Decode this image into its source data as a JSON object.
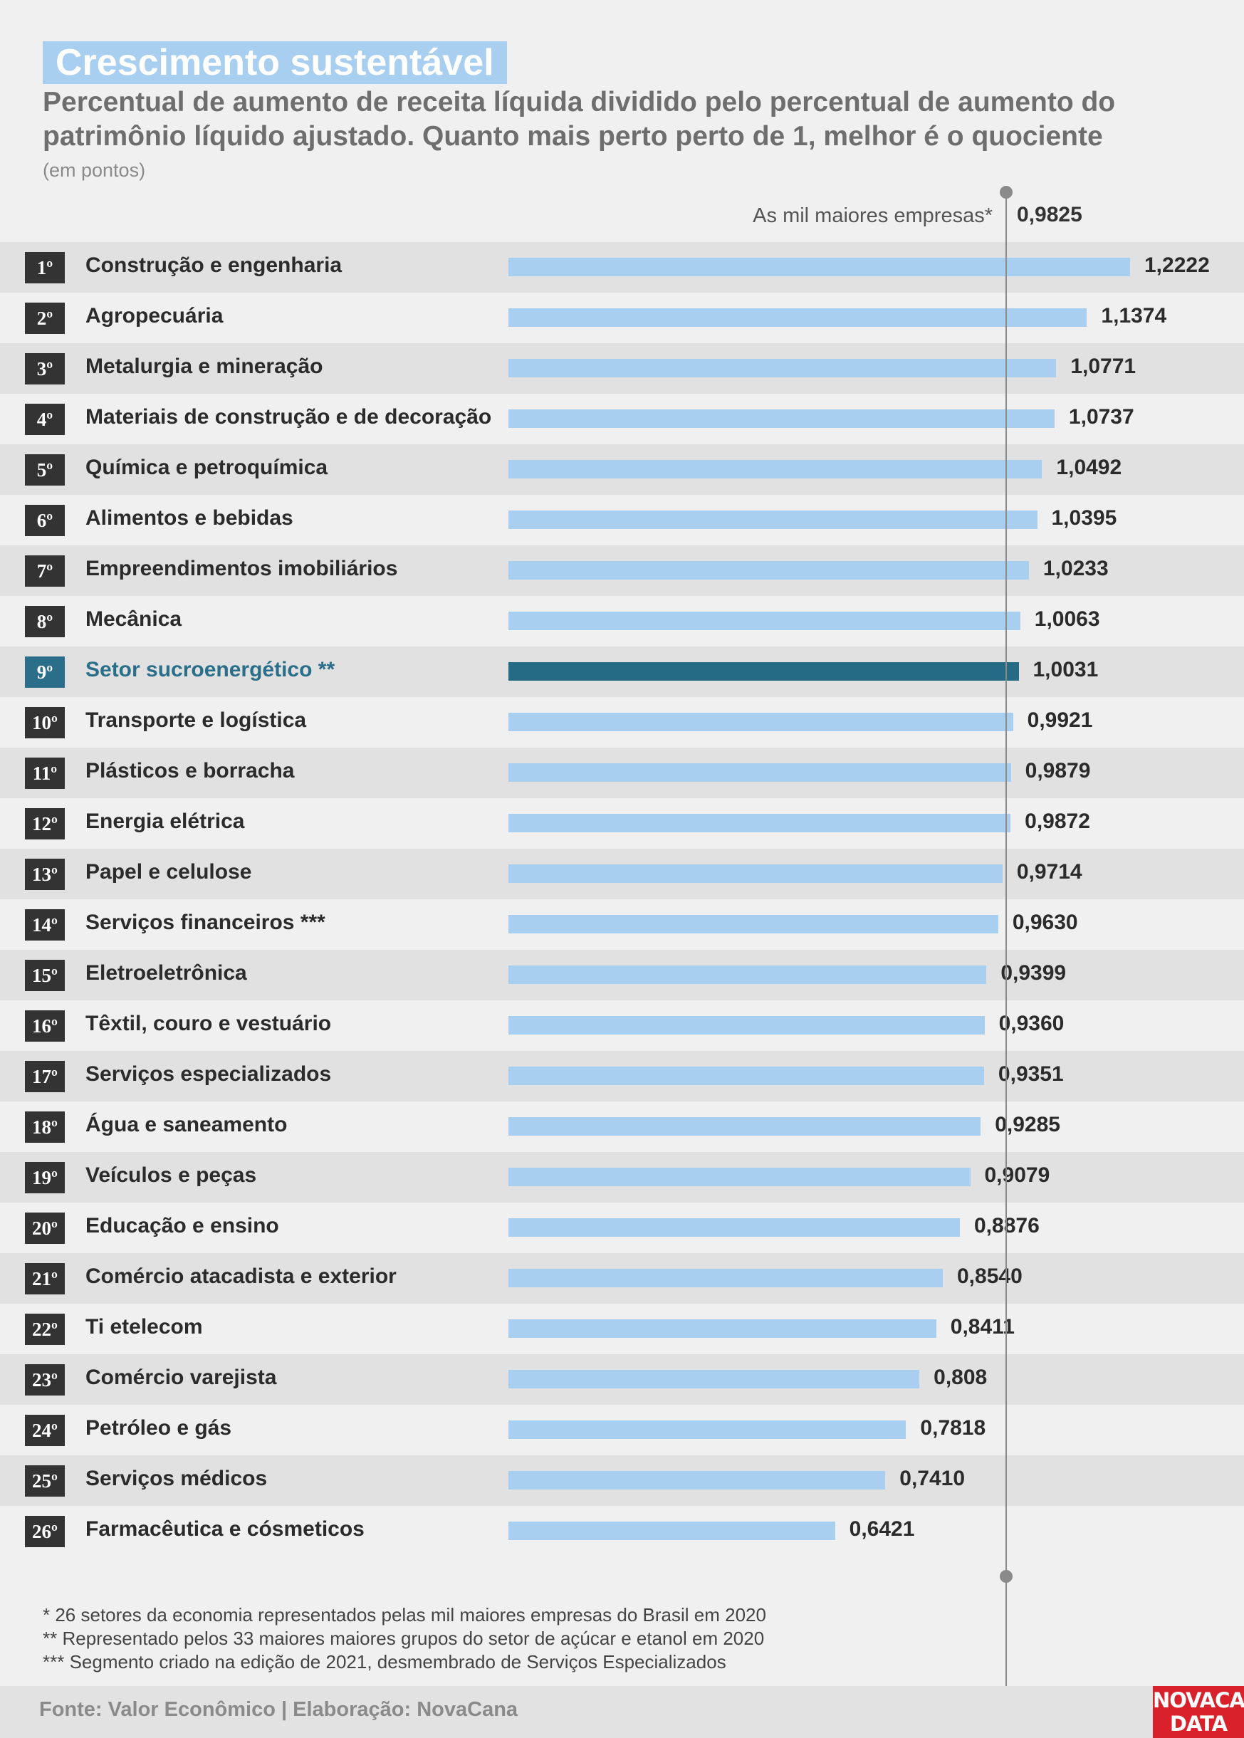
{
  "title": "Crescimento sustentável",
  "subtitle": "Percentual de aumento de receita líquida dividido pelo percentual de aumento do patrimônio líquido ajustado. Quanto mais perto perto de 1, melhor é o quociente",
  "unit": "(em pontos)",
  "reference": {
    "label": "As mil maiores empresas*",
    "value_text": "0,9825",
    "value": 0.9825
  },
  "notes": [
    "* 26 setores da economia representados pelas mil maiores empresas do Brasil em 2020",
    "** Representado pelos 33 maiores maiores grupos do setor de açúcar e etanol em 2020",
    "*** Segmento criado na edição de 2021, desmembrado de Serviços Especializados"
  ],
  "source": "Fonte: Valor Econômico | Elaboração: NovaCana",
  "logo": [
    "NOVACANA",
    "DATA"
  ],
  "colors": {
    "bar": "#a9cff0",
    "highlight_bar": "#256b85",
    "highlight_text": "#2a6e8a",
    "rank_box": "#333333",
    "logo": "#d8212b"
  },
  "chart_data": {
    "type": "bar",
    "orientation": "horizontal",
    "ranks": [
      "1º",
      "2º",
      "3º",
      "4º",
      "5º",
      "6º",
      "7º",
      "8º",
      "9º",
      "10º",
      "11º",
      "12º",
      "13º",
      "14º",
      "15º",
      "16º",
      "17º",
      "18º",
      "19º",
      "20º",
      "21º",
      "22º",
      "23º",
      "24º",
      "25º",
      "26º"
    ],
    "categories": [
      "Construção e engenharia",
      "Agropecuária",
      "Metalurgia e mineração",
      "Materiais de construção e de decoração",
      "Química e petroquímica",
      "Alimentos e bebidas",
      "Empreendimentos imobiliários",
      "Mecânica",
      "Setor sucroenergético **",
      "Transporte e logística",
      "Plásticos e borracha",
      "Energia elétrica",
      "Papel e celulose",
      "Serviços financeiros ***",
      "Eletroeletrônica",
      "Têxtil, couro e vestuário",
      "Serviços especializados",
      "Água e saneamento",
      "Veículos e peças",
      "Educação e ensino",
      "Comércio atacadista e exterior",
      "Ti etelecom",
      "Comércio varejista",
      "Petróleo e gás",
      "Serviços médicos",
      "Farmacêutica e cósmeticos"
    ],
    "values": [
      1.2222,
      1.1374,
      1.0771,
      1.0737,
      1.0492,
      1.0395,
      1.0233,
      1.0063,
      1.0031,
      0.9921,
      0.9879,
      0.9872,
      0.9714,
      0.963,
      0.9399,
      0.936,
      0.9351,
      0.9285,
      0.9079,
      0.8876,
      0.854,
      0.8411,
      0.808,
      0.7818,
      0.741,
      0.6421
    ],
    "value_labels": [
      "1,2222",
      "1,1374",
      "1,0771",
      "1,0737",
      "1,0492",
      "1,0395",
      "1,0233",
      "1,0063",
      "1,0031",
      "0,9921",
      "0,9879",
      "0,9872",
      "0,9714",
      "0,9630",
      "0,9399",
      "0,9360",
      "0,9351",
      "0,9285",
      "0,9079",
      "0,8876",
      "0,8540",
      "0,8411",
      "0,808",
      "0,7818",
      "0,7410",
      "0,6421"
    ],
    "highlight_index": 8,
    "xlim": [
      0,
      1.2222
    ],
    "reference_line": 0.9825
  }
}
